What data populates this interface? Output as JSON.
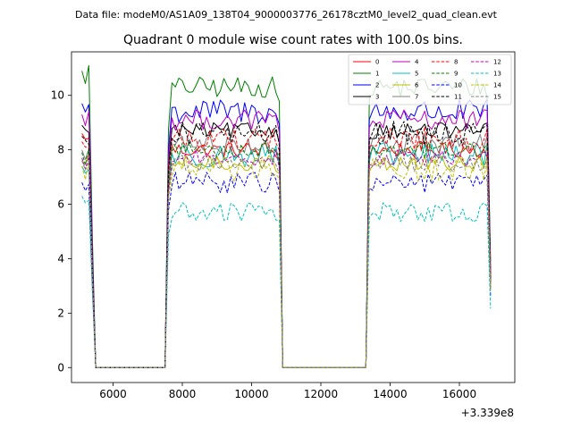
{
  "suptitle": "Data file: modeM0/AS1A09_138T04_9000003776_26178cztM0_level2_quad_clean.evt",
  "chart_data": {
    "type": "line",
    "title": "Quadrant 0 module wise count rates with 100.0s bins.",
    "xlabel": "",
    "ylabel": "",
    "x_offset_label": "+3.339e8",
    "xlim": [
      4800,
      17600
    ],
    "ylim": [
      -0.55,
      11.6
    ],
    "xticks": [
      6000,
      8000,
      10000,
      12000,
      14000,
      16000
    ],
    "yticks": [
      0,
      2,
      4,
      6,
      8,
      10
    ],
    "legend_location": "upper right",
    "legend_columns": 4,
    "segments": [
      {
        "x_start": 5100,
        "x_end": 5400,
        "step": 100
      },
      {
        "x_start": 7600,
        "x_end": 10800,
        "step": 100
      },
      {
        "x_start": 13400,
        "x_end": 16900,
        "step": 100
      }
    ],
    "zero_gaps": [
      [
        5500,
        7500
      ],
      [
        10900,
        13300
      ]
    ],
    "series": [
      {
        "name": "0",
        "color": "#ff0000",
        "dash": false,
        "level": 8.0,
        "start": 8.6
      },
      {
        "name": "1",
        "color": "#008000",
        "dash": false,
        "level": 10.3,
        "start": 10.9
      },
      {
        "name": "2",
        "color": "#0000ff",
        "dash": false,
        "level": 9.4,
        "start": 9.7
      },
      {
        "name": "3",
        "color": "#000000",
        "dash": false,
        "level": 8.7,
        "start": 8.9
      },
      {
        "name": "4",
        "color": "#bf00bf",
        "dash": false,
        "level": 9.1,
        "start": 9.3
      },
      {
        "name": "5",
        "color": "#00bfbf",
        "dash": false,
        "level": 7.8,
        "start": 7.4
      },
      {
        "name": "6",
        "color": "#bfbf00",
        "dash": false,
        "level": 7.5,
        "start": 7.6
      },
      {
        "name": "7",
        "color": "#808080",
        "dash": false,
        "level": 8.2,
        "start": 8.0
      },
      {
        "name": "8",
        "color": "#ff0000",
        "dash": true,
        "level": 8.4,
        "start": 8.3
      },
      {
        "name": "9",
        "color": "#008000",
        "dash": true,
        "level": 8.0,
        "start": 7.9
      },
      {
        "name": "10",
        "color": "#0000ff",
        "dash": true,
        "level": 6.8,
        "start": 6.8
      },
      {
        "name": "11",
        "color": "#000000",
        "dash": true,
        "level": 8.6,
        "start": 8.5
      },
      {
        "name": "12",
        "color": "#bf00bf",
        "dash": true,
        "level": 7.7,
        "start": 7.7
      },
      {
        "name": "13",
        "color": "#00bfbf",
        "dash": true,
        "level": 5.7,
        "start": 6.3
      },
      {
        "name": "14",
        "color": "#bfbf00",
        "dash": true,
        "level": 7.3,
        "start": 7.4
      },
      {
        "name": "15",
        "color": "#808080",
        "dash": true,
        "level": 7.5,
        "start": 7.6
      }
    ]
  }
}
